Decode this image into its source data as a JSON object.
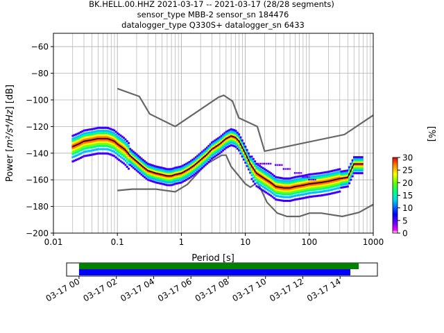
{
  "title_lines": [
    "BK.HELL.00.HHZ   2021-03-17 -- 2021-03-17  (28/28 segments)",
    "sensor_type MBB-2 sensor_sn 184476",
    "datalogger_type Q330S+ datalogger_sn 6433"
  ],
  "chart_data": [
    {
      "type": "heatmap",
      "title": "BK.HELL.00.HHZ   2021-03-17 -- 2021-03-17  (28/28 segments)",
      "xlabel": "Period [s]",
      "ylabel_prefix": "Power [",
      "ylabel_unit_tex": "m²/s⁴/Hz",
      "ylabel_suffix": "] [dB]",
      "x_scale": "log",
      "xlim": [
        0.01,
        1000
      ],
      "ylim": [
        -200,
        -50
      ],
      "x_tick_labels": [
        "0.01",
        "0.1",
        "1",
        "10",
        "100",
        "1000"
      ],
      "x_ticks": [
        0.01,
        0.1,
        1,
        10,
        100,
        1000
      ],
      "y_ticks": [
        -200,
        -180,
        -160,
        -140,
        -120,
        -100,
        -80,
        -60
      ],
      "y_tick_labels": [
        "−200",
        "−180",
        "−160",
        "−140",
        "−120",
        "−100",
        "−80",
        "−60"
      ],
      "grid": true,
      "colorbar": {
        "label": "[%]",
        "range": [
          0,
          30
        ],
        "ticks": [
          0,
          5,
          10,
          15,
          20,
          25,
          30
        ],
        "tick_labels": [
          "0",
          "5",
          "10",
          "15",
          "20",
          "25",
          "30"
        ]
      },
      "noise_models": [
        {
          "name": "NHNM",
          "period": [
            0.1,
            0.22,
            0.32,
            0.8,
            3.8,
            4.6,
            6.3,
            7.9,
            15.4,
            20,
            354.8,
            1000
          ],
          "power": [
            -91.5,
            -97.4,
            -110.5,
            -120,
            -98,
            -96.5,
            -101,
            -113.5,
            -120,
            -138.5,
            -126,
            -111.5
          ]
        },
        {
          "name": "NLNM",
          "period": [
            0.1,
            0.17,
            0.4,
            0.8,
            1.24,
            2.4,
            4.3,
            5,
            6,
            10,
            12,
            15.6,
            21.9,
            31.6,
            45,
            70,
            101,
            154,
            328,
            600,
            1000
          ],
          "power": [
            -168,
            -167,
            -167,
            -169,
            -163.5,
            -148.5,
            -141.5,
            -141.5,
            -150,
            -163,
            -165.5,
            -162,
            -177,
            -185,
            -187.5,
            -187.5,
            -185,
            -185,
            -187.5,
            -184.5,
            -178.5
          ]
        }
      ],
      "series": [
        {
          "name": "mode",
          "period": [
            0.02,
            0.025,
            0.03,
            0.04,
            0.05,
            0.06,
            0.07,
            0.08,
            0.09,
            0.1,
            0.13,
            0.16,
            0.2,
            0.25,
            0.3,
            0.4,
            0.5,
            0.6,
            0.7,
            0.8,
            1,
            1.3,
            1.6,
            2,
            2.5,
            3,
            4,
            5,
            6,
            7,
            8,
            10,
            12,
            15,
            20,
            25,
            30,
            40,
            50,
            60,
            80,
            100,
            150,
            200,
            300,
            400,
            500,
            700
          ],
          "power": [
            -135,
            -133,
            -131,
            -130,
            -129,
            -129,
            -129,
            -130,
            -131,
            -133,
            -137,
            -142,
            -146,
            -150,
            -153,
            -155,
            -156,
            -157,
            -157,
            -156,
            -155,
            -152,
            -149,
            -145,
            -141,
            -137,
            -133,
            -129,
            -127,
            -128,
            -131,
            -140,
            -148,
            -155,
            -159,
            -162,
            -165,
            -166,
            -166,
            -165,
            -164,
            -163,
            -162,
            -161,
            -159,
            -158,
            -148,
            -148
          ]
        },
        {
          "name": "upper-outlier",
          "period": [
            15,
            20,
            30,
            40,
            60,
            80,
            100
          ],
          "power": [
            -148,
            -148,
            -149,
            -152,
            -155,
            -158,
            -160
          ]
        }
      ],
      "color_scale": [
        "#ffffff",
        "#a000ff",
        "#4000ff",
        "#00c0ff",
        "#00ff80",
        "#80ff00",
        "#ffff00",
        "#ff8000",
        "#ff0000"
      ]
    },
    {
      "type": "bar",
      "note": "data-availability timeline",
      "x_scale": "time",
      "xlim": [
        "2021-03-16 23:20",
        "2021-03-17 16:00"
      ],
      "x_tick_labels": [
        "03-17 00",
        "03-17 02",
        "03-17 04",
        "03-17 06",
        "03-17 08",
        "03-17 10",
        "03-17 12",
        "03-17 14"
      ],
      "x_ticks_hours": [
        0,
        2,
        4,
        6,
        8,
        10,
        12,
        14
      ],
      "series": [
        {
          "name": "green",
          "color": "#008000",
          "start_hour": 0,
          "end_hour": 15.0
        },
        {
          "name": "blue",
          "color": "#0000ff",
          "start_hour": 0,
          "end_hour": 14.55
        }
      ]
    }
  ]
}
